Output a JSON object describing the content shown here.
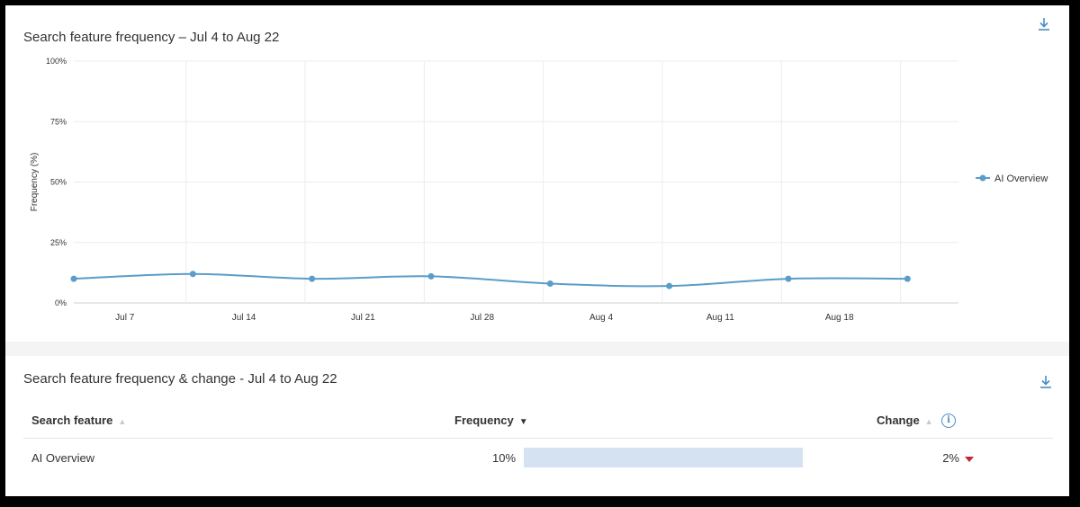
{
  "chart_section": {
    "title": "Search feature frequency – Jul 4 to Aug 22",
    "download_icon": "download-icon"
  },
  "chart_data": {
    "type": "line",
    "title": "Search feature frequency – Jul 4 to Aug 22",
    "xlabel": "",
    "ylabel": "Frequency (%)",
    "ylim": [
      0,
      100
    ],
    "y_ticks": [
      "100%",
      "75%",
      "50%",
      "25%",
      "0%"
    ],
    "x_ticks": [
      "Jul 7",
      "Jul 14",
      "Jul 21",
      "Jul 28",
      "Aug 4",
      "Aug 11",
      "Aug 18"
    ],
    "x_range": [
      "2024-07-04",
      "2024-08-25"
    ],
    "grid": true,
    "legend_position": "right",
    "series": [
      {
        "name": "AI Overview",
        "color": "#5b9dc9",
        "x": [
          "2024-07-04",
          "2024-07-11",
          "2024-07-18",
          "2024-07-25",
          "2024-08-01",
          "2024-08-08",
          "2024-08-15",
          "2024-08-22"
        ],
        "values": [
          10,
          12,
          10,
          11,
          8,
          7,
          10,
          10
        ]
      }
    ]
  },
  "table_section": {
    "title": "Search feature frequency & change - Jul 4 to Aug 22",
    "download_icon": "download-icon",
    "columns": {
      "feature": "Search feature",
      "frequency": "Frequency",
      "change": "Change"
    },
    "rows": [
      {
        "feature": "AI Overview",
        "frequency": "10%",
        "frequency_value": 10,
        "change": "2%",
        "change_direction": "down"
      }
    ]
  }
}
